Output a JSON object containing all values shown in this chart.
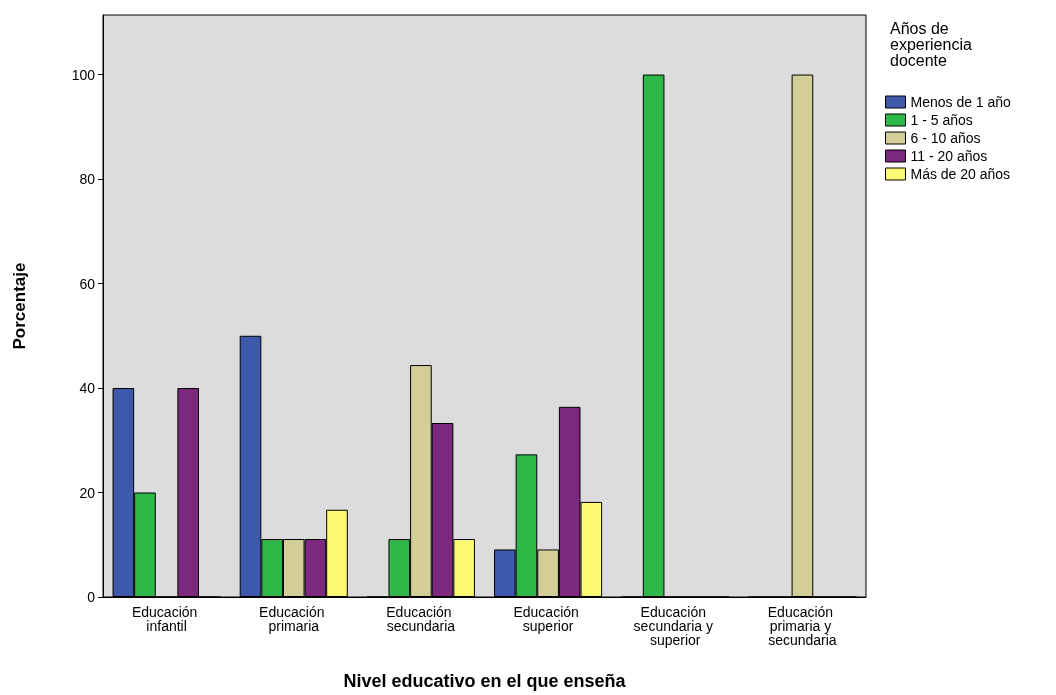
{
  "chart_data": {
    "type": "bar",
    "xlabel": "Nivel educativo en el que enseña",
    "ylabel": "Porcentaje",
    "legend_title": "Años de experiencia docente",
    "categories": [
      "Educación infantil",
      "Educación primaria",
      "Educación secundaria",
      "Educación superior",
      "Educación secundaria y superior",
      "Educación primaria y secundaria"
    ],
    "series": [
      {
        "name": "Menos de 1 año",
        "color": "#3e58ac",
        "values": [
          40,
          50,
          0,
          9.1,
          0,
          0
        ]
      },
      {
        "name": "1 - 5 años",
        "color": "#2eb848",
        "values": [
          20,
          11.1,
          11.1,
          27.3,
          100,
          0
        ]
      },
      {
        "name": "6 - 10 años",
        "color": "#d3ce97",
        "values": [
          0,
          11.1,
          44.4,
          9.1,
          0,
          100
        ]
      },
      {
        "name": "11 - 20 años",
        "color": "#7c287d",
        "values": [
          40,
          11.1,
          33.3,
          36.4,
          0,
          0
        ]
      },
      {
        "name": "Más de 20 años",
        "color": "#fbf873",
        "values": [
          0,
          16.7,
          11.1,
          18.2,
          0,
          0
        ]
      }
    ],
    "ylim": [
      0,
      111.4
    ],
    "yticks": [
      0,
      20,
      40,
      60,
      80,
      100
    ],
    "grid": false,
    "legend": "right"
  }
}
